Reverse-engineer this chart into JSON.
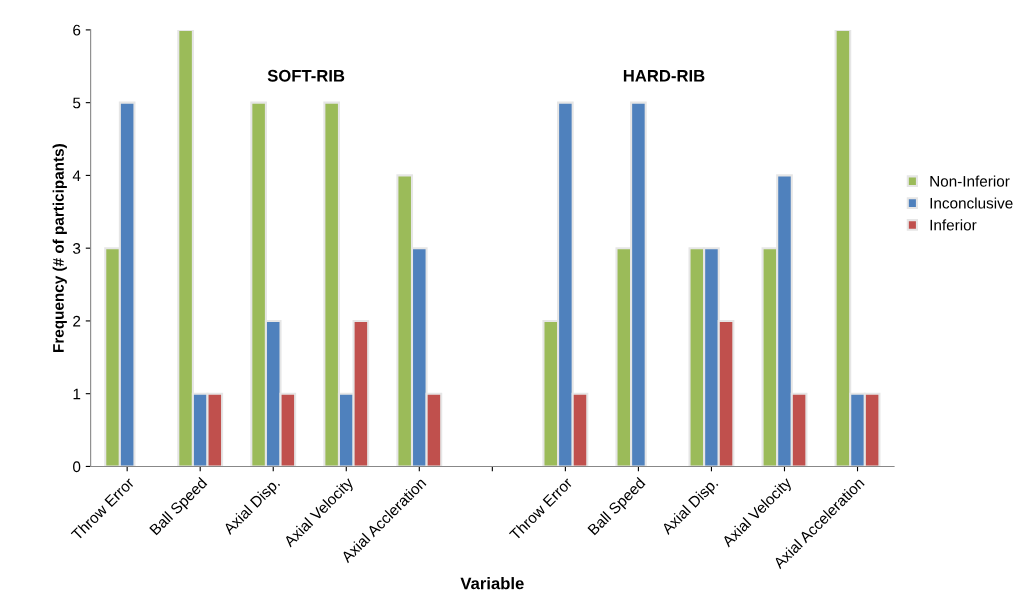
{
  "chart_data": {
    "type": "bar",
    "xlabel": "Variable",
    "ylabel": "Frequency (# of participants)",
    "categories": [
      "Throw Error",
      "Ball Speed",
      "Axial Disp.",
      "Axial Velocity",
      "Axial Accleration",
      null,
      "Throw Error",
      "Ball Speed",
      "Axial Disp.",
      "Axial Velocity",
      "Axial Acceleration"
    ],
    "series": [
      {
        "name": "Non-Inferior",
        "color": "#9bbb59",
        "values": [
          3,
          6,
          5,
          5,
          4,
          null,
          2,
          3,
          3,
          3,
          6
        ]
      },
      {
        "name": "Inconclusive",
        "color": "#4f81bd",
        "values": [
          5,
          1,
          2,
          1,
          3,
          null,
          5,
          5,
          3,
          4,
          1
        ]
      },
      {
        "name": "Inferior",
        "color": "#c0504d",
        "values": [
          null,
          1,
          1,
          2,
          1,
          null,
          1,
          null,
          2,
          1,
          1
        ]
      }
    ],
    "ylim": [
      0,
      6
    ],
    "yticks": [
      0,
      1,
      2,
      3,
      4,
      5,
      6
    ],
    "grid": false,
    "legend": "right",
    "annotations": [
      "SOFT-RIB",
      "HARD-RIB"
    ]
  }
}
